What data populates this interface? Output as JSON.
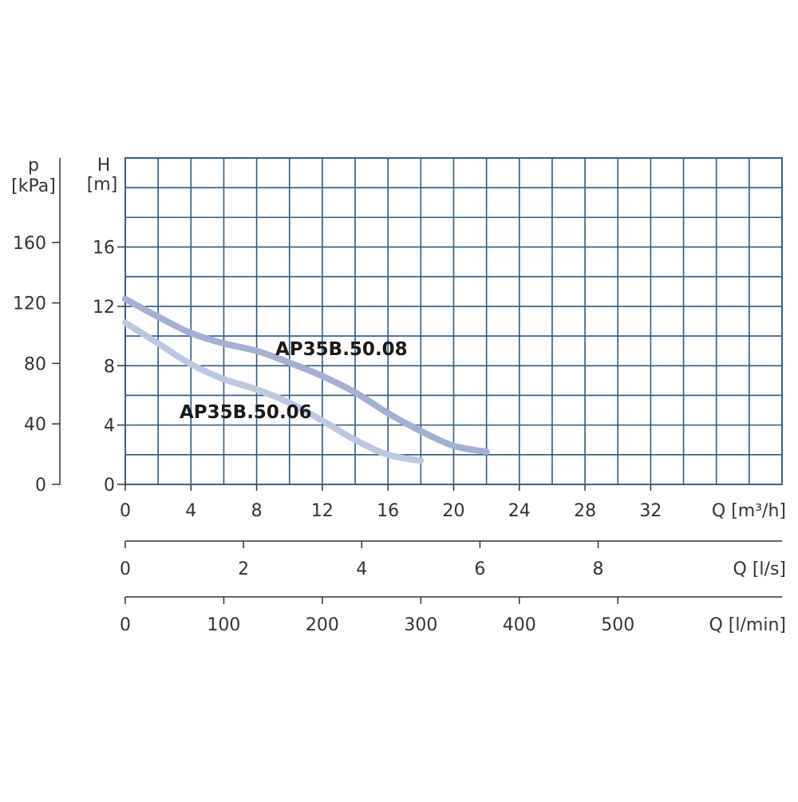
{
  "chart_data": {
    "type": "line",
    "colors": {
      "grid": "#2e5a80",
      "axis": "#333333",
      "curve": "#a9b7d7",
      "text": "#333333"
    },
    "grid": true,
    "x": {
      "label": "Q [m³/h]",
      "lim": [
        0,
        40
      ],
      "ticks": [
        0,
        4,
        8,
        12,
        16,
        20,
        24,
        28,
        32
      ],
      "tick_labels": [
        "0",
        "4",
        "8",
        "12",
        "16",
        "20",
        "24",
        "28",
        "32"
      ]
    },
    "x_secondary": [
      {
        "label": "Q [l/s]",
        "ticks": [
          0,
          2,
          4,
          6,
          8
        ],
        "tick_labels": [
          "0",
          "2",
          "4",
          "6",
          "8"
        ]
      },
      {
        "label": "Q [l/min]",
        "ticks": [
          0,
          100,
          200,
          300,
          400,
          500
        ],
        "tick_labels": [
          "0",
          "100",
          "200",
          "300",
          "400",
          "500"
        ]
      }
    ],
    "y": {
      "label_top": "H",
      "label_unit": "[m]",
      "lim": [
        0,
        22
      ],
      "ticks": [
        0,
        4,
        8,
        12,
        16
      ],
      "tick_labels": [
        "0",
        "4",
        "8",
        "12",
        "16"
      ]
    },
    "y_secondary": {
      "label_top": "p",
      "label_unit": "[kPa]",
      "ticks": [
        0,
        40,
        80,
        120,
        160
      ],
      "tick_labels": [
        "0",
        "40",
        "80",
        "120",
        "160"
      ]
    },
    "series": [
      {
        "name": "AP35B.50.08",
        "x": [
          0,
          2,
          4,
          6,
          8,
          10,
          12,
          14,
          16,
          18,
          20,
          22
        ],
        "y": [
          12.5,
          11.3,
          10.2,
          9.5,
          9.0,
          8.2,
          7.3,
          6.2,
          4.8,
          3.6,
          2.6,
          2.2
        ]
      },
      {
        "name": "AP35B.50.06",
        "x": [
          0,
          2,
          4,
          6,
          8,
          10,
          12,
          14,
          16,
          18
        ],
        "y": [
          10.9,
          9.5,
          8.1,
          7.1,
          6.4,
          5.5,
          4.3,
          3.0,
          2.0,
          1.6
        ]
      }
    ]
  }
}
